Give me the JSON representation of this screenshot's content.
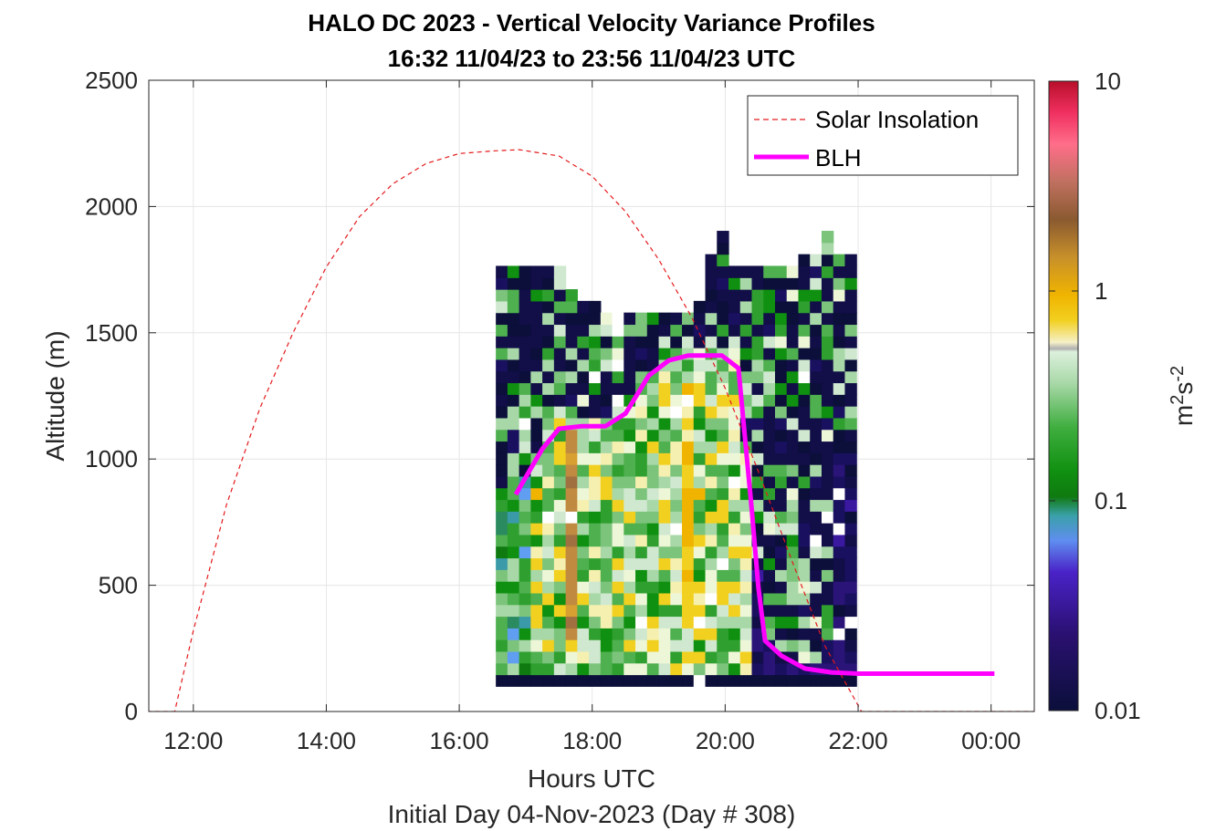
{
  "chart_data": {
    "type": "heatmap",
    "title": "HALO DC 2023 - Vertical Velocity Variance Profiles",
    "subtitle": "16:32 11/04/23 to 23:56 11/04/23  UTC",
    "xlabel": "Hours UTC",
    "xlabel2": "Initial Day 04-Nov-2023 (Day # 308)",
    "ylabel": "Altitude (m)",
    "xlim": [
      11.33,
      24.65
    ],
    "ylim": [
      0,
      2500
    ],
    "x_ticks": [
      12,
      14,
      16,
      18,
      20,
      22,
      24
    ],
    "x_tick_labels": [
      "12:00",
      "14:00",
      "16:00",
      "18:00",
      "20:00",
      "22:00",
      "00:00"
    ],
    "y_ticks": [
      0,
      500,
      1000,
      1500,
      2000,
      2500
    ],
    "y_tick_labels": [
      "0",
      "500",
      "1000",
      "1500",
      "2000",
      "2500"
    ],
    "grid": true,
    "colorbar": {
      "label": "m²s⁻²",
      "scale": "log",
      "range": [
        0.01,
        10
      ],
      "tick_labels": [
        "0.01",
        "0.1",
        "1",
        "10"
      ],
      "tick_values": [
        0.01,
        0.1,
        1,
        10
      ]
    },
    "legend": {
      "position": "top-right",
      "entries": [
        "Solar Insolation",
        "BLH"
      ]
    },
    "series": [
      {
        "name": "Solar Insolation",
        "style": "dashed",
        "color": "#e4191c",
        "x": [
          11.3,
          11.72,
          12.0,
          12.5,
          13.0,
          13.5,
          14.0,
          14.5,
          15.0,
          15.5,
          16.0,
          16.5,
          16.9,
          17.5,
          18.0,
          18.5,
          19.0,
          19.5,
          20.0,
          20.5,
          21.0,
          21.5,
          22.05,
          24.65
        ],
        "y": [
          0,
          0,
          320,
          820,
          1200,
          1500,
          1760,
          1960,
          2090,
          2170,
          2210,
          2220,
          2225,
          2200,
          2120,
          1980,
          1790,
          1560,
          1280,
          950,
          600,
          260,
          0,
          0
        ]
      },
      {
        "name": "BLH",
        "style": "solid",
        "color": "#ff00ff",
        "x": [
          16.85,
          17.05,
          17.25,
          17.5,
          17.85,
          18.2,
          18.5,
          18.85,
          19.15,
          19.45,
          19.75,
          19.95,
          20.2,
          20.4,
          20.5,
          20.6,
          20.85,
          21.2,
          21.6,
          22.0,
          22.5,
          23.0,
          23.5,
          24.05,
          24.55,
          24.65
        ],
        "y": [
          860,
          950,
          1040,
          1120,
          1130,
          1130,
          1180,
          1330,
          1390,
          1410,
          1410,
          1410,
          1360,
          800,
          490,
          280,
          220,
          170,
          155,
          150,
          150,
          150,
          150,
          150,
          null,
          150
        ]
      }
    ],
    "heatmap": {
      "x_start": 16.55,
      "x_step": 0.175,
      "z_start_m": 100,
      "z_step_m": 46.25,
      "columns": 31
    }
  }
}
